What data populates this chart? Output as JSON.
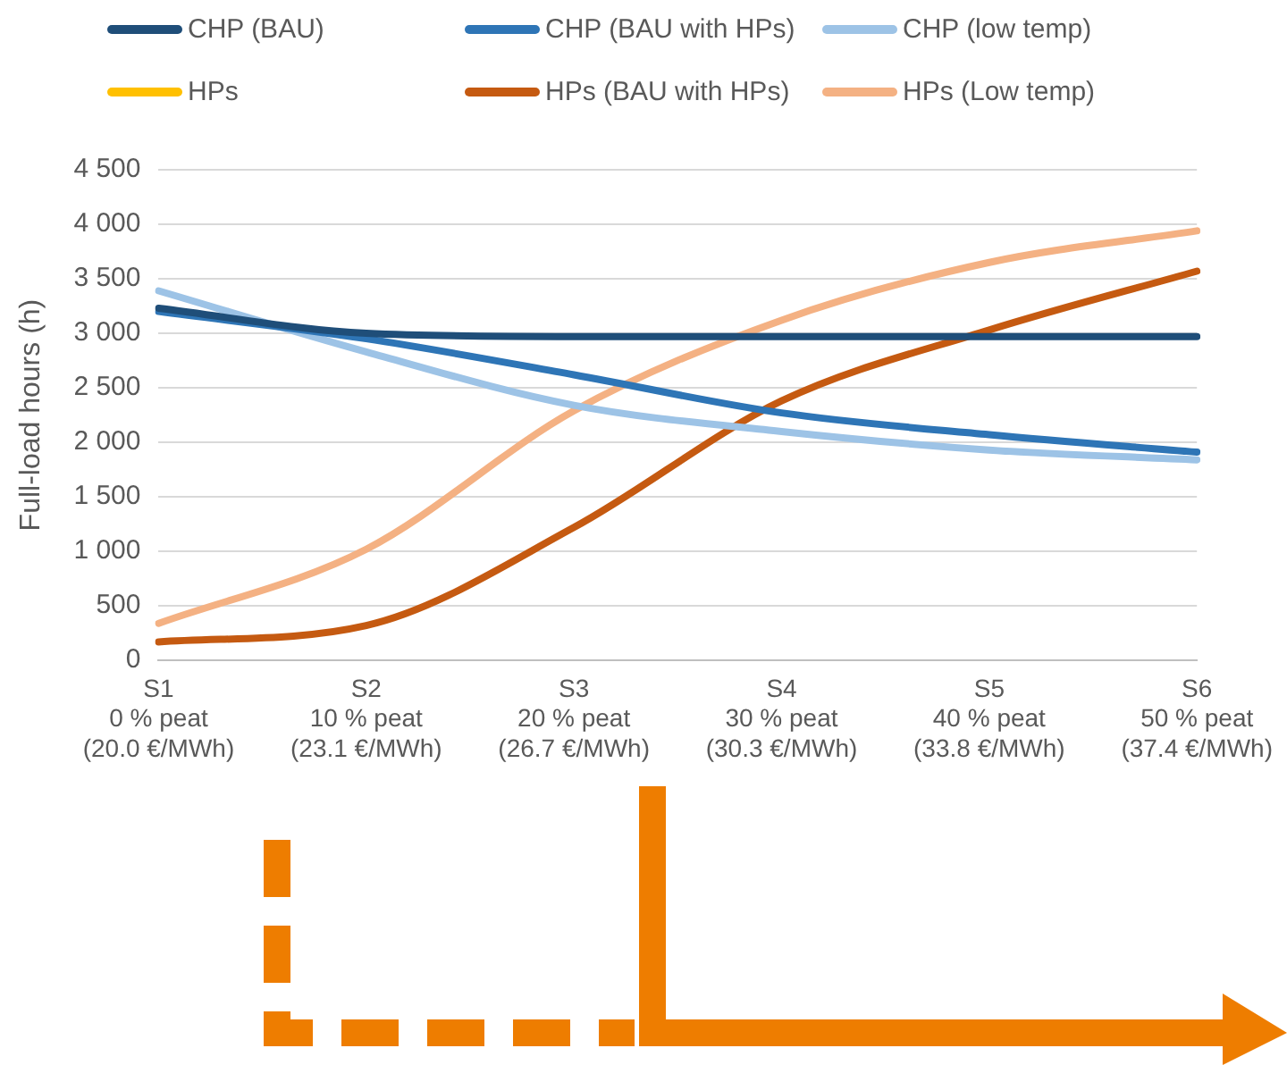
{
  "chart_data": {
    "type": "line",
    "ylabel": "Full-load hours (h)",
    "categories": [
      "S1\n0 % peat\n(20.0 €/MWh)",
      "S2\n10 % peat\n(23.1 €/MWh)",
      "S3\n20 % peat\n(26.7 €/MWh)",
      "S4\n30 % peat\n(30.3 €/MWh)",
      "S5\n40 % peat\n(33.8 €/MWh)",
      "S6\n50 % peat\n(37.4 €/MWh)"
    ],
    "series": [
      {
        "name": "CHP (BAU)",
        "color": "#1f4e79",
        "values": [
          3230,
          3000,
          2970,
          2970,
          2970,
          2970
        ]
      },
      {
        "name": "CHP (BAU with HPs)",
        "color": "#2e75b6",
        "values": [
          3200,
          2950,
          2620,
          2270,
          2070,
          1910
        ]
      },
      {
        "name": "CHP (low temp)",
        "color": "#9dc3e6",
        "values": [
          3390,
          2830,
          2340,
          2100,
          1930,
          1840
        ]
      },
      {
        "name": "HPs",
        "color": "#ffc000",
        "values": [
          null,
          null,
          null,
          null,
          null,
          null
        ]
      },
      {
        "name": "HPs (BAU with HPs)",
        "color": "#c55a11",
        "values": [
          170,
          320,
          1220,
          2380,
          3030,
          3570
        ]
      },
      {
        "name": "HPs (Low temp)",
        "color": "#f4b183",
        "values": [
          340,
          1020,
          2290,
          3120,
          3650,
          3940
        ]
      }
    ],
    "ylim": [
      0,
      4500
    ],
    "yticks": [
      {
        "value": 0,
        "label": "0"
      },
      {
        "value": 500,
        "label": "500"
      },
      {
        "value": 1000,
        "label": "1 000"
      },
      {
        "value": 1500,
        "label": "1 500"
      },
      {
        "value": 2000,
        "label": "2 000"
      },
      {
        "value": 2500,
        "label": "2 500"
      },
      {
        "value": 3000,
        "label": "3 000"
      },
      {
        "value": 3500,
        "label": "3 500"
      },
      {
        "value": 4000,
        "label": "4 000"
      },
      {
        "value": 4500,
        "label": "4 500"
      }
    ],
    "grid": "y",
    "legend": "top",
    "marker": "none",
    "line_style": "solid"
  }
}
